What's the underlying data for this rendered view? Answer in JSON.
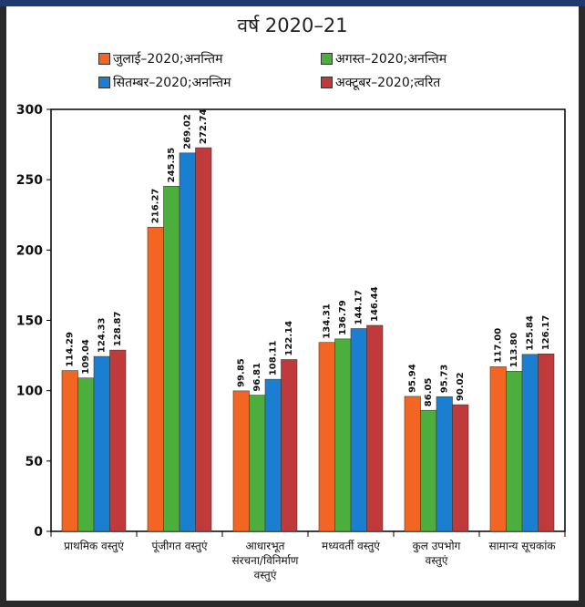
{
  "header": {
    "subtitle": "वर्ष 2020–21"
  },
  "colors": {
    "series": [
      "#f26522",
      "#4cae3c",
      "#1b7fd1",
      "#c0393b"
    ]
  },
  "chart_data": {
    "type": "bar",
    "title": "",
    "subtitle": "वर्ष 2020–21",
    "legend_position": "top",
    "grid": false,
    "ylim": [
      0,
      300
    ],
    "yticks": [
      0,
      50,
      100,
      150,
      200,
      250,
      300
    ],
    "categories": [
      [
        "प्राथमिक वस्तुएं"
      ],
      [
        "पूंजीगत वस्तुएं"
      ],
      [
        "आधारभूत",
        "संरचना/विनिर्माण",
        "वस्तुएं"
      ],
      [
        "मध्यवर्ती वस्तुएं"
      ],
      [
        "कुल उपभोग",
        "वस्तुएं"
      ],
      [
        "सामान्य सूचकांक"
      ]
    ],
    "series": [
      {
        "name": "जुलाई–2020;अनन्तिम",
        "values": [
          114.29,
          216.27,
          99.85,
          134.31,
          95.94,
          117.0
        ],
        "labels": [
          "114.29",
          "216.27",
          "99.85",
          "134.31",
          "95.94",
          "117.00"
        ]
      },
      {
        "name": "अगस्त–2020;अनन्तिम",
        "values": [
          109.04,
          245.35,
          96.81,
          136.79,
          86.05,
          113.8
        ],
        "labels": [
          "109.04",
          "245.35",
          "96.81",
          "136.79",
          "86.05",
          "113.80"
        ]
      },
      {
        "name": "सितम्बर–2020;अनन्तिम",
        "values": [
          124.33,
          269.02,
          108.11,
          144.17,
          95.73,
          125.84
        ],
        "labels": [
          "124.33",
          "269.02",
          "108.11",
          "144.17",
          "95.73",
          "125.84"
        ]
      },
      {
        "name": "अक्टूबर–2020;त्वरित",
        "values": [
          128.87,
          272.74,
          122.14,
          146.44,
          90.02,
          126.17
        ],
        "labels": [
          "128.87",
          "272.74",
          "122.14",
          "146.44",
          "90.02",
          "126.17"
        ]
      }
    ]
  }
}
